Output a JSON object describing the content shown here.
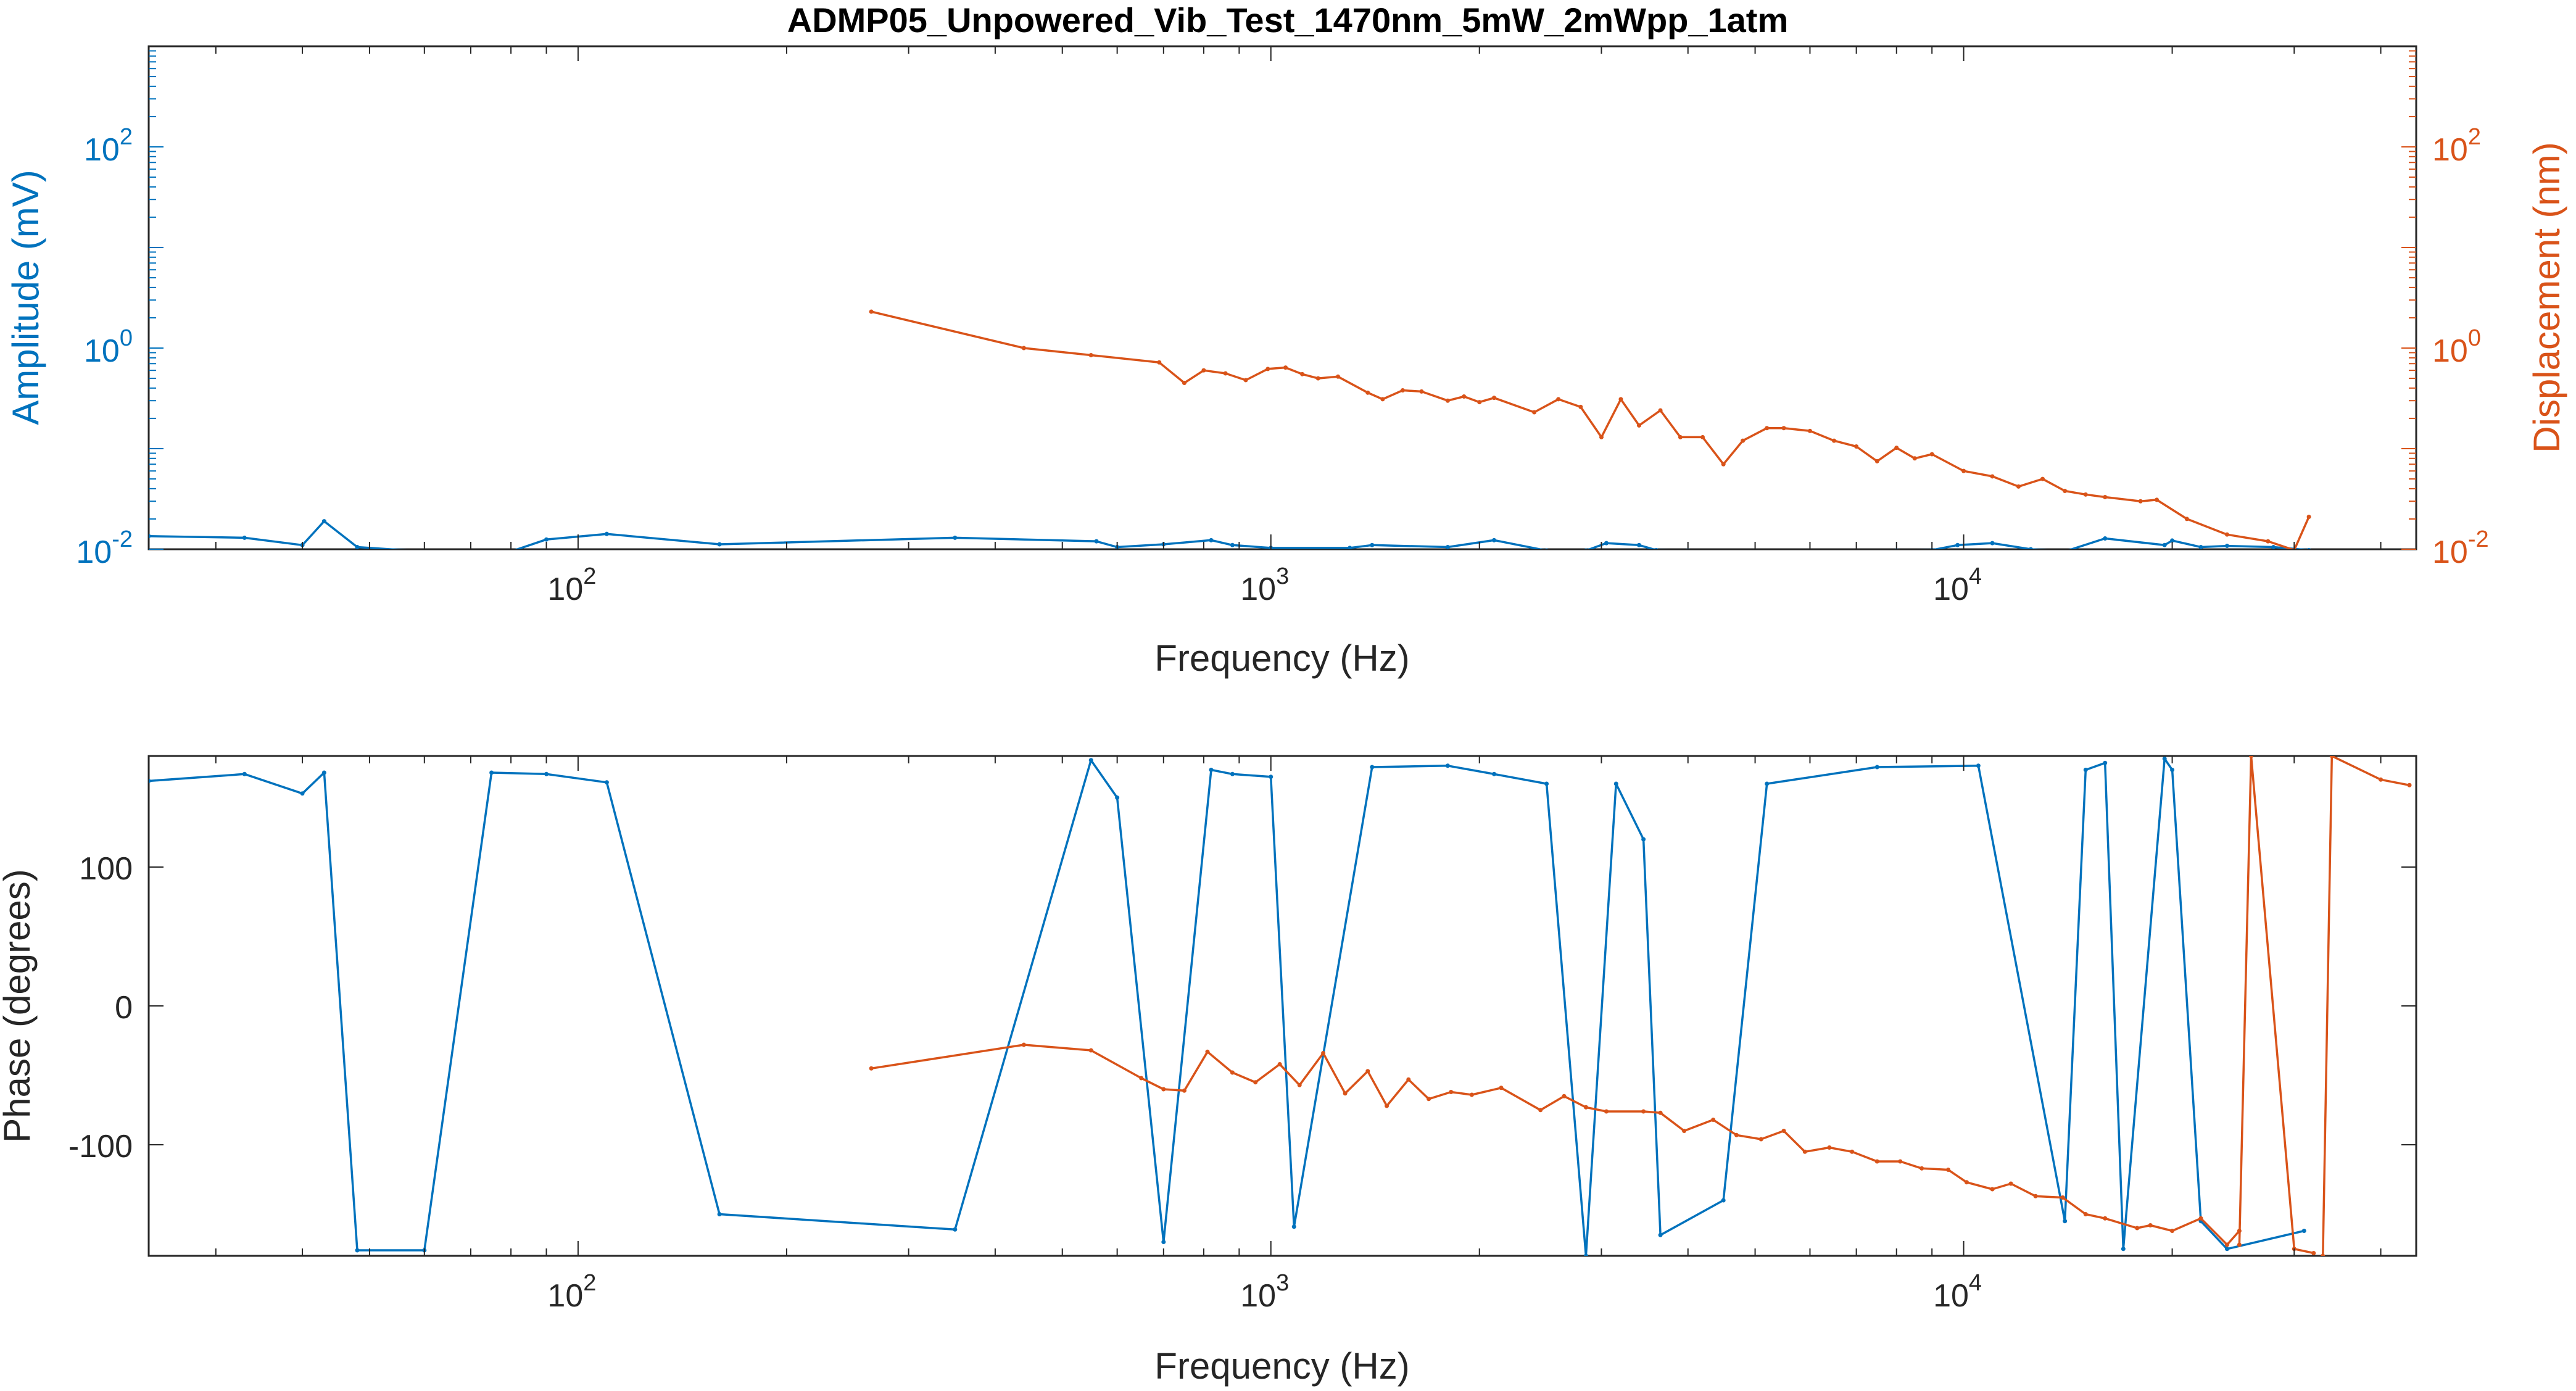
{
  "chart_data": [
    {
      "type": "line",
      "title": "ADMP05_Unpowered_Vib_Test_1470nm_5mW_2mWpp_1atm",
      "xlabel": "Frequency (Hz)",
      "ylabel": "Amplitude (mV)",
      "ylabel_right": "Displacement (nm)",
      "xscale": "log",
      "yscale": "log",
      "xlim": [
        24,
        45000
      ],
      "ylim": [
        0.01,
        1000
      ],
      "ylim_right": [
        0.01,
        1000
      ],
      "xticks": [
        {
          "value": 100,
          "label": "10",
          "exp": "2"
        },
        {
          "value": 1000,
          "label": "10",
          "exp": "3"
        },
        {
          "value": 10000,
          "label": "10",
          "exp": "4"
        }
      ],
      "yticks": [
        {
          "value": 0.01,
          "label": "10",
          "exp": "-2"
        },
        {
          "value": 1,
          "label": "10",
          "exp": "0"
        },
        {
          "value": 100,
          "label": "10",
          "exp": "2"
        }
      ],
      "yticks_right": [
        {
          "value": 0.01,
          "label": "10",
          "exp": "-2"
        },
        {
          "value": 1,
          "label": "10",
          "exp": "0"
        },
        {
          "value": 100,
          "label": "10",
          "exp": "2"
        }
      ],
      "colors": {
        "left_axis": "#0072BD",
        "right_axis": "#D95319",
        "frame": "#262626"
      },
      "series": [
        {
          "axis": "left",
          "color": "#0072BD",
          "segments": [
            [
              [
                24,
                0.0135
              ],
              [
                33,
                0.013
              ],
              [
                40,
                0.011
              ],
              [
                43,
                0.019
              ],
              [
                48,
                0.0105
              ],
              [
                60,
                0.0095
              ],
              [
                70,
                0.0093
              ],
              [
                80,
                0.0095
              ],
              [
                90,
                0.0125
              ],
              [
                110,
                0.0142
              ],
              [
                160,
                0.0112
              ],
              [
                350,
                0.013
              ],
              [
                560,
                0.012
              ],
              [
                600,
                0.0105
              ],
              [
                700,
                0.0112
              ],
              [
                820,
                0.0123
              ],
              [
                880,
                0.011
              ],
              [
                1000,
                0.0103
              ],
              [
                1300,
                0.0103
              ],
              [
                1400,
                0.011
              ],
              [
                1800,
                0.0105
              ],
              [
                2100,
                0.0123
              ],
              [
                2500,
                0.0097
              ],
              [
                2850,
                0.0097
              ],
              [
                3050,
                0.0115
              ],
              [
                3400,
                0.011
              ],
              [
                3600,
                0.0098
              ],
              [
                4000,
                0.0097
              ],
              [
                8000,
                0.0097
              ],
              [
                9000,
                0.0098
              ],
              [
                9800,
                0.011
              ],
              [
                11000,
                0.0115
              ],
              [
                12500,
                0.01
              ],
              [
                14000,
                0.0095
              ],
              [
                16000,
                0.0128
              ],
              [
                19500,
                0.011
              ],
              [
                20000,
                0.0122
              ],
              [
                22000,
                0.0105
              ],
              [
                24000,
                0.0108
              ],
              [
                28000,
                0.0105
              ],
              [
                31500,
                0.0098
              ]
            ]
          ]
        },
        {
          "axis": "right",
          "color": "#D95319",
          "segments": [
            [
              [
                265,
                2.3
              ],
              [
                440,
                1.0
              ],
              [
                550,
                0.85
              ],
              [
                690,
                0.72
              ],
              [
                750,
                0.45
              ],
              [
                800,
                0.6
              ],
              [
                860,
                0.56
              ],
              [
                920,
                0.48
              ],
              [
                990,
                0.62
              ],
              [
                1050,
                0.64
              ],
              [
                1110,
                0.55
              ],
              [
                1170,
                0.5
              ],
              [
                1250,
                0.52
              ],
              [
                1380,
                0.36
              ],
              [
                1450,
                0.31
              ],
              [
                1550,
                0.38
              ],
              [
                1650,
                0.37
              ],
              [
                1800,
                0.3
              ],
              [
                1900,
                0.33
              ],
              [
                2000,
                0.29
              ],
              [
                2100,
                0.32
              ],
              [
                2400,
                0.23
              ],
              [
                2600,
                0.31
              ],
              [
                2800,
                0.26
              ],
              [
                3000,
                0.13
              ],
              [
                3200,
                0.31
              ],
              [
                3400,
                0.17
              ],
              [
                3650,
                0.24
              ],
              [
                3900,
                0.13
              ],
              [
                4200,
                0.13
              ],
              [
                4500,
                0.07
              ],
              [
                4800,
                0.12
              ],
              [
                5200,
                0.16
              ],
              [
                5500,
                0.16
              ],
              [
                6000,
                0.15
              ],
              [
                6500,
                0.12
              ],
              [
                7000,
                0.105
              ],
              [
                7500,
                0.075
              ],
              [
                8000,
                0.102
              ],
              [
                8500,
                0.08
              ],
              [
                9000,
                0.088
              ],
              [
                10000,
                0.06
              ],
              [
                11000,
                0.053
              ],
              [
                12000,
                0.042
              ],
              [
                13000,
                0.05
              ],
              [
                14000,
                0.038
              ],
              [
                15000,
                0.035
              ],
              [
                16000,
                0.033
              ],
              [
                18000,
                0.03
              ],
              [
                19000,
                0.031
              ],
              [
                21000,
                0.02
              ],
              [
                24000,
                0.014
              ],
              [
                27500,
                0.012
              ],
              [
                30000,
                0.0098
              ],
              [
                31500,
                0.021
              ]
            ]
          ]
        }
      ]
    },
    {
      "type": "line",
      "xlabel": "Frequency (Hz)",
      "ylabel": "Phase (degrees)",
      "xscale": "log",
      "xlim": [
        24,
        45000
      ],
      "ylim": [
        -180,
        180
      ],
      "xticks": [
        {
          "value": 100,
          "label": "10",
          "exp": "2"
        },
        {
          "value": 1000,
          "label": "10",
          "exp": "3"
        },
        {
          "value": 10000,
          "label": "10",
          "exp": "4"
        }
      ],
      "yticks": [
        {
          "value": 100,
          "label": "100"
        },
        {
          "value": 0,
          "label": "0"
        },
        {
          "value": -100,
          "label": "-100"
        }
      ],
      "colors": {
        "frame": "#262626"
      },
      "series": [
        {
          "color": "#0072BD",
          "segments": [
            [
              [
                24,
                162
              ],
              [
                33,
                167
              ],
              [
                40,
                153
              ],
              [
                43,
                168
              ],
              [
                48,
                -176
              ],
              [
                60,
                -176
              ],
              [
                75,
                168
              ],
              [
                90,
                167
              ],
              [
                110,
                161
              ],
              [
                160,
                -150
              ],
              [
                350,
                -161
              ],
              [
                550,
                177
              ],
              [
                600,
                150
              ],
              [
                700,
                -170
              ],
              [
                820,
                170
              ],
              [
                880,
                167
              ],
              [
                1000,
                165
              ],
              [
                1080,
                -159
              ],
              [
                1400,
                172
              ],
              [
                1800,
                173
              ],
              [
                2100,
                167
              ],
              [
                2500,
                160
              ],
              [
                2850,
                -180
              ],
              [
                3150,
                160
              ],
              [
                3450,
                120
              ],
              [
                3650,
                -165
              ],
              [
                4500,
                -140
              ],
              [
                5200,
                160
              ],
              [
                7500,
                172
              ],
              [
                10500,
                173
              ],
              [
                14000,
                -155
              ],
              [
                15000,
                170
              ],
              [
                16000,
                175
              ],
              [
                17000,
                -175
              ],
              [
                19500,
                178
              ],
              [
                20000,
                170
              ],
              [
                22000,
                -155
              ],
              [
                24000,
                -175
              ],
              [
                31000,
                -162
              ]
            ]
          ]
        },
        {
          "color": "#D95319",
          "segments": [
            [
              [
                265,
                -45
              ],
              [
                440,
                -28
              ],
              [
                550,
                -32
              ],
              [
                650,
                -52
              ],
              [
                700,
                -60
              ],
              [
                750,
                -61
              ],
              [
                810,
                -33
              ],
              [
                880,
                -48
              ],
              [
                950,
                -55
              ],
              [
                1030,
                -42
              ],
              [
                1100,
                -57
              ],
              [
                1190,
                -34
              ],
              [
                1280,
                -63
              ],
              [
                1380,
                -47
              ],
              [
                1470,
                -72
              ],
              [
                1580,
                -53
              ],
              [
                1690,
                -67
              ],
              [
                1820,
                -62
              ],
              [
                1950,
                -64
              ],
              [
                2150,
                -59
              ],
              [
                2450,
                -75
              ],
              [
                2650,
                -65
              ],
              [
                2850,
                -73
              ],
              [
                3050,
                -76
              ],
              [
                3450,
                -76
              ],
              [
                3650,
                -77
              ],
              [
                3950,
                -90
              ],
              [
                4350,
                -82
              ],
              [
                4700,
                -93
              ],
              [
                5100,
                -96
              ],
              [
                5500,
                -90
              ],
              [
                5900,
                -105
              ],
              [
                6400,
                -102
              ],
              [
                6900,
                -105
              ],
              [
                7500,
                -112
              ],
              [
                8100,
                -112
              ],
              [
                8700,
                -117
              ],
              [
                9500,
                -118
              ],
              [
                10100,
                -127
              ],
              [
                11000,
                -132
              ],
              [
                11700,
                -128
              ],
              [
                12700,
                -137
              ],
              [
                13900,
                -138
              ],
              [
                15000,
                -150
              ],
              [
                16000,
                -153
              ],
              [
                17800,
                -160
              ],
              [
                18600,
                -158
              ],
              [
                20000,
                -162
              ],
              [
                22000,
                -153
              ],
              [
                24000,
                -172
              ],
              [
                25000,
                -162
              ]
            ],
            [
              [
                25000,
                -172
              ],
              [
                26000,
                180
              ],
              [
                30000,
                -175
              ],
              [
                32000,
                -178
              ]
            ],
            [
              [
                33000,
                -180
              ],
              [
                34000,
                180
              ],
              [
                40000,
                163
              ],
              [
                44000,
                159
              ]
            ]
          ]
        }
      ]
    }
  ]
}
